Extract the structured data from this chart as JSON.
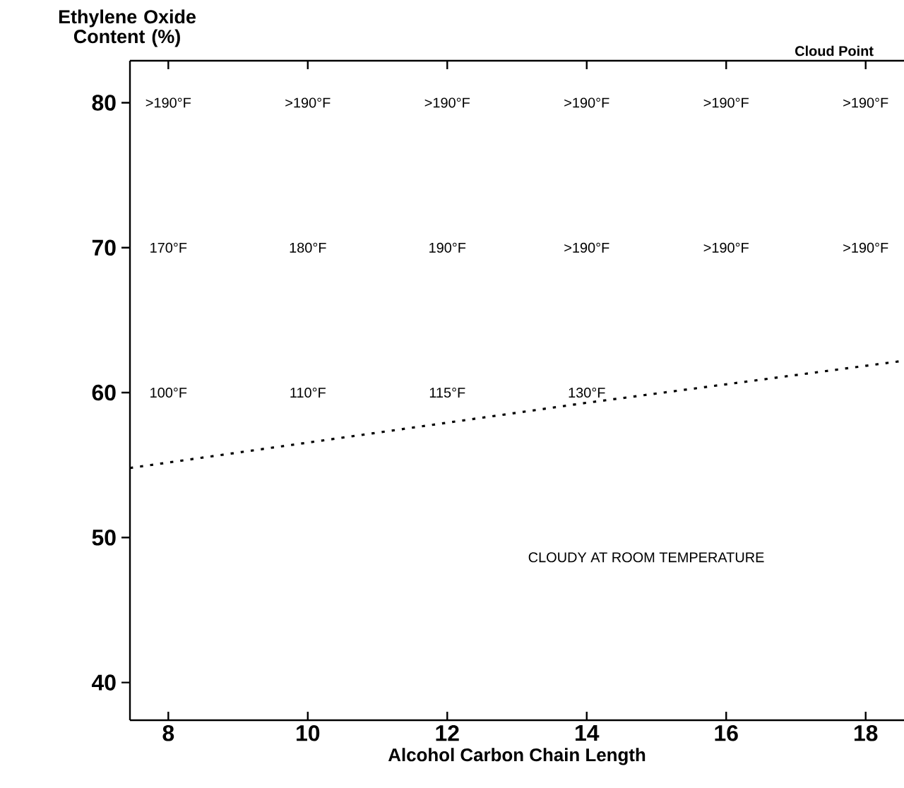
{
  "chart_data": {
    "type": "line",
    "subtitle": "Cloud Point",
    "xlabel": "Alcohol Carbon Chain Length",
    "ylabel": "Ethylene Oxide Content (%)",
    "x": [
      7.45,
      14,
      18.55
    ],
    "series": [
      {
        "color": "#000000",
        "line_style": "dotted",
        "values": [
          54.8,
          59.3,
          62.2
        ]
      }
    ],
    "xlim": [
      7.45,
      18.55
    ],
    "ylim": [
      37.4,
      82.9
    ],
    "xticks": [
      8,
      10,
      12,
      14,
      16,
      18
    ],
    "yticks": [
      40,
      50,
      60,
      70,
      80
    ],
    "annotations": [
      ">190°F",
      ">190°F",
      ">190°F",
      ">190°F",
      ">190°F",
      ">190°F",
      "170°F",
      "180°F",
      "190°F",
      ">190°F",
      ">190°F",
      ">190°F",
      "100°F",
      "110°F",
      "115°F",
      "130°F",
      "CLOUDY AT ROOM TEMPERATURE"
    ]
  }
}
